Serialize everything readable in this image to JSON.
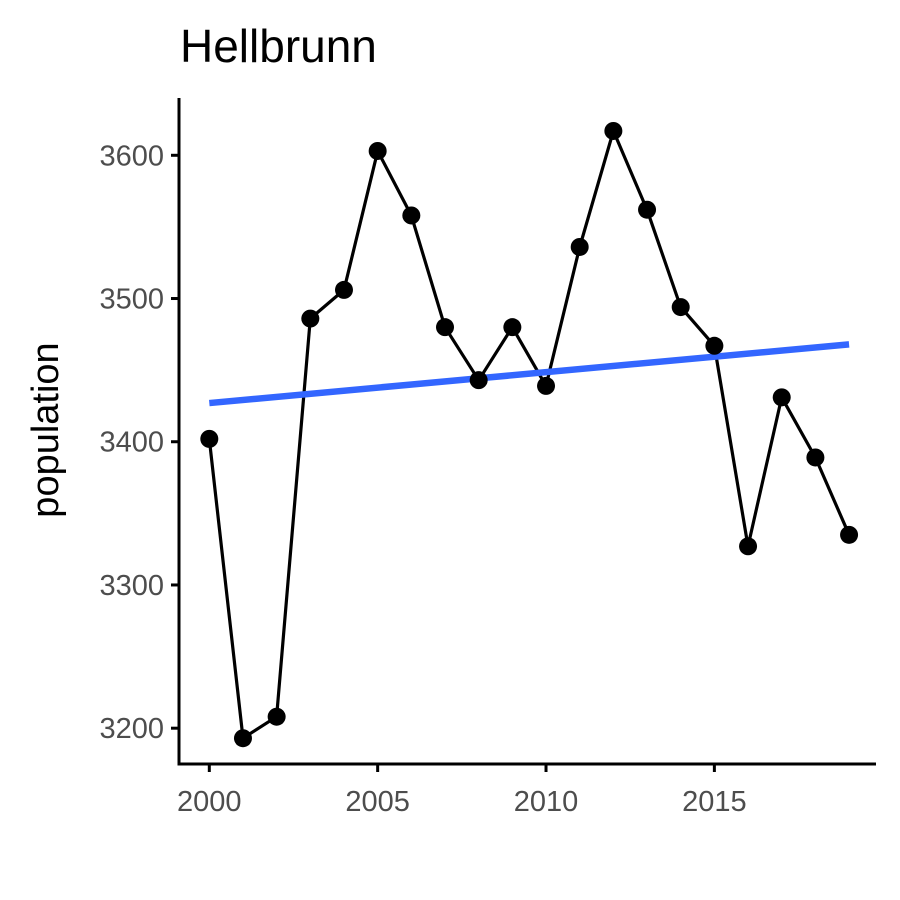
{
  "chart_data": {
    "type": "line",
    "title": "Hellbrunn",
    "xlabel": "",
    "ylabel": "population",
    "xlim": [
      1999.1,
      2019.8
    ],
    "ylim": [
      3175,
      3640
    ],
    "x_ticks": [
      2000,
      2005,
      2010,
      2015
    ],
    "y_ticks": [
      3200,
      3300,
      3400,
      3500,
      3600
    ],
    "grid": false,
    "legend": "none",
    "series": [
      {
        "x": [
          2000,
          2001,
          2002,
          2003,
          2004,
          2005,
          2006,
          2007,
          2008,
          2009,
          2010,
          2011,
          2012,
          2013,
          2014,
          2015,
          2016,
          2017,
          2018,
          2019
        ],
        "y": [
          3402,
          3193,
          3208,
          3486,
          3506,
          3603,
          3558,
          3480,
          3443,
          3480,
          3439,
          3536,
          3617,
          3562,
          3494,
          3467,
          3327,
          3431,
          3389,
          3335
        ],
        "color": "#000000",
        "markers": true
      }
    ],
    "trend_line": {
      "x": [
        2000,
        2019
      ],
      "y": [
        3427,
        3468
      ],
      "color": "#3366FF"
    },
    "axis_color": "#000000",
    "tick_label_color": "#4d4d4d"
  }
}
